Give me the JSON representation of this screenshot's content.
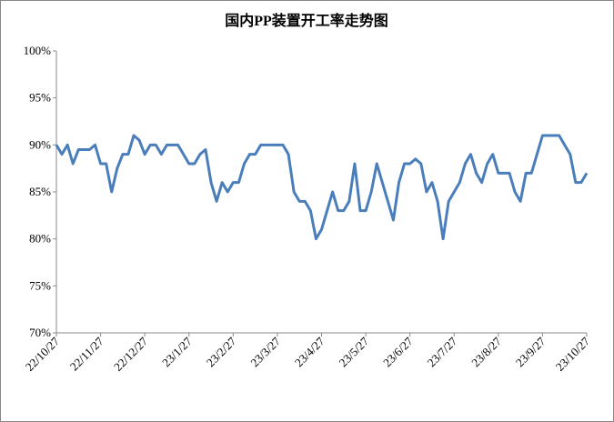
{
  "chart_data": {
    "type": "line",
    "title": "国内PP装置开工率走势图",
    "categories": [
      "22/10/27",
      null,
      null,
      null,
      null,
      null,
      null,
      null,
      "22/11/27",
      null,
      null,
      null,
      null,
      null,
      null,
      null,
      "22/12/27",
      null,
      null,
      null,
      null,
      null,
      null,
      null,
      "23/1/27",
      null,
      null,
      null,
      null,
      null,
      null,
      null,
      "23/2/27",
      null,
      null,
      null,
      null,
      null,
      null,
      null,
      "23/3/27",
      null,
      null,
      null,
      null,
      null,
      null,
      null,
      "23/4/27",
      null,
      null,
      null,
      null,
      null,
      null,
      null,
      "23/5/27",
      null,
      null,
      null,
      null,
      null,
      null,
      null,
      "23/6/27",
      null,
      null,
      null,
      null,
      null,
      null,
      null,
      "23/7/27",
      null,
      null,
      null,
      null,
      null,
      null,
      null,
      "23/8/27",
      null,
      null,
      null,
      null,
      null,
      null,
      null,
      "23/9/27",
      null,
      null,
      null,
      null,
      null,
      null,
      null,
      "23/10/27"
    ],
    "series": [
      {
        "color": "#4a7ebb",
        "values": [
          90,
          89,
          90,
          88,
          89.5,
          89.5,
          89.5,
          90,
          88,
          88,
          85,
          87.5,
          89,
          89,
          91,
          90.5,
          89,
          90,
          90,
          89,
          90,
          90,
          90,
          89,
          88,
          88,
          89,
          89.5,
          86,
          84,
          86,
          85,
          86,
          86,
          88,
          89,
          89,
          90,
          90,
          90,
          90,
          90,
          89,
          85,
          84,
          84,
          83,
          80,
          81,
          83,
          85,
          83,
          83,
          84,
          88,
          83,
          83,
          85,
          88,
          86,
          84,
          82,
          86,
          88,
          88,
          88.5,
          88,
          85,
          86,
          84,
          80,
          84,
          85,
          86,
          88,
          89,
          87,
          86,
          88,
          89,
          87,
          87,
          87,
          85,
          84,
          87,
          87,
          89,
          91,
          91,
          91,
          91,
          90,
          89,
          86,
          86,
          87
        ]
      }
    ],
    "ylim": [
      70,
      100
    ],
    "yticks": [
      {
        "value": 70,
        "label": "70%"
      },
      {
        "value": 75,
        "label": "75%"
      },
      {
        "value": 80,
        "label": "80%"
      },
      {
        "value": 85,
        "label": "85%"
      },
      {
        "value": 90,
        "label": "90%"
      },
      {
        "value": 95,
        "label": "95%"
      },
      {
        "value": 100,
        "label": "100%"
      }
    ]
  }
}
